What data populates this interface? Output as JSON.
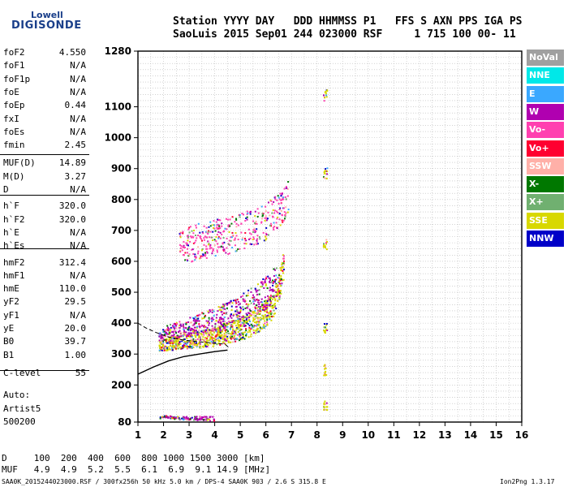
{
  "logo": {
    "line1": "Lowell",
    "line2": "DIGISONDE"
  },
  "header": {
    "line1": "Station YYYY DAY   DDD HHMMSS P1   FFS S AXN PPS IGA PS",
    "line2": "SaoLuis 2015 Sep01 244 023000 RSF     1 715 100 00- 11"
  },
  "params": [
    {
      "name": "foF2",
      "value": "4.550"
    },
    {
      "name": "foF1",
      "value": "N/A"
    },
    {
      "name": "foF1p",
      "value": "N/A"
    },
    {
      "name": "foE",
      "value": "N/A"
    },
    {
      "name": "foEp",
      "value": "0.44"
    },
    {
      "name": "fxI",
      "value": "N/A"
    },
    {
      "name": "foEs",
      "value": "N/A"
    },
    {
      "name": "fmin",
      "value": "2.45"
    },
    {
      "name": "MUF(D)",
      "value": "14.89"
    },
    {
      "name": "M(D)",
      "value": "3.27"
    },
    {
      "name": "D",
      "value": "N/A"
    },
    {
      "name": "h`F",
      "value": "320.0"
    },
    {
      "name": "h`F2",
      "value": "320.0"
    },
    {
      "name": "h`E",
      "value": "N/A"
    },
    {
      "name": "h`Es",
      "value": "N/A"
    },
    {
      "name": "hmF2",
      "value": "312.4"
    },
    {
      "name": "hmF1",
      "value": "N/A"
    },
    {
      "name": "hmE",
      "value": "110.0"
    },
    {
      "name": "yF2",
      "value": "29.5"
    },
    {
      "name": "yF1",
      "value": "N/A"
    },
    {
      "name": "yE",
      "value": "20.0"
    },
    {
      "name": "B0",
      "value": "39.7"
    },
    {
      "name": "B1",
      "value": "1.00"
    },
    {
      "name": "C-level",
      "value": "55"
    }
  ],
  "auto": {
    "label": "Auto:",
    "program": "Artist5",
    "version": "500200"
  },
  "table": {
    "row1": "D     100  200  400  600  800 1000 1500 3000 [km]",
    "row2": "MUF   4.9  4.9  5.2  5.5  6.1  6.9  9.1 14.9 [MHz]"
  },
  "footer": {
    "left": "SAA0K_2015244023000.RSF / 300fx256h 50 kHz 5.0 km / DPS-4 SAA0K 903 / 2.6 S 315.8 E",
    "right": "Ion2Png 1.3.17"
  },
  "legend": [
    {
      "label": "NoVal",
      "color": "#a0a0a0"
    },
    {
      "label": "NNE",
      "color": "#00e8e8"
    },
    {
      "label": "E",
      "color": "#3aa8ff"
    },
    {
      "label": "W",
      "color": "#b000b0"
    },
    {
      "label": "Vo-",
      "color": "#ff40b0"
    },
    {
      "label": "Vo+",
      "color": "#ff0030"
    },
    {
      "label": "SSW",
      "color": "#ffb0a8"
    },
    {
      "label": "X-",
      "color": "#007800"
    },
    {
      "label": "X+",
      "color": "#70b070"
    },
    {
      "label": "SSE",
      "color": "#d8d800"
    },
    {
      "label": "NNW",
      "color": "#0000c8"
    }
  ],
  "chart_data": {
    "type": "scatter",
    "title": "",
    "xlabel": "",
    "ylabel": "",
    "xlim": [
      1,
      16
    ],
    "ylim": [
      80,
      1280
    ],
    "x_ticks": [
      1,
      2,
      3,
      4,
      5,
      6,
      7,
      8,
      9,
      10,
      11,
      12,
      13,
      14,
      15,
      16
    ],
    "y_ticks": [
      80,
      200,
      300,
      400,
      500,
      600,
      700,
      800,
      900,
      1000,
      1100,
      1280
    ],
    "grid": true,
    "legend_position": "right",
    "series": [
      {
        "name": "O-trace F2 (lower, dense)",
        "color_key": "SSE",
        "points": [
          [
            1.8,
            330
          ],
          [
            2.2,
            335
          ],
          [
            2.6,
            340
          ],
          [
            3.0,
            345
          ],
          [
            3.4,
            350
          ],
          [
            3.8,
            355
          ],
          [
            4.2,
            365
          ],
          [
            4.6,
            375
          ],
          [
            5.0,
            385
          ],
          [
            5.4,
            400
          ],
          [
            5.8,
            420
          ],
          [
            6.2,
            450
          ],
          [
            6.5,
            520
          ],
          [
            6.7,
            600
          ]
        ]
      },
      {
        "name": "X-trace F2 (mid)",
        "color_key": "W",
        "points": [
          [
            1.8,
            360
          ],
          [
            2.4,
            380
          ],
          [
            3.0,
            390
          ],
          [
            3.6,
            405
          ],
          [
            4.2,
            420
          ],
          [
            4.8,
            440
          ],
          [
            5.4,
            470
          ],
          [
            6.0,
            500
          ],
          [
            6.4,
            540
          ]
        ]
      },
      {
        "name": "Multi-hop echoes",
        "color_key": "Vo-",
        "points": [
          [
            2.6,
            640
          ],
          [
            3.0,
            660
          ],
          [
            3.6,
            670
          ],
          [
            4.2,
            680
          ],
          [
            4.8,
            690
          ],
          [
            5.4,
            710
          ],
          [
            6.0,
            730
          ],
          [
            6.6,
            780
          ],
          [
            6.9,
            820
          ]
        ]
      },
      {
        "name": "Interference ~8.3 MHz",
        "color_key": "SSE",
        "points": [
          [
            8.3,
            130
          ],
          [
            8.3,
            250
          ],
          [
            8.3,
            390
          ],
          [
            8.3,
            660
          ],
          [
            8.3,
            890
          ],
          [
            8.3,
            1140
          ]
        ]
      },
      {
        "name": "Low-frequency E echoes",
        "color_key": "W",
        "points": [
          [
            1.8,
            95
          ],
          [
            2.0,
            100
          ],
          [
            2.4,
            96
          ],
          [
            2.8,
            94
          ],
          [
            3.2,
            95
          ],
          [
            3.6,
            93
          ],
          [
            4.0,
            92
          ]
        ]
      }
    ],
    "model_profile": {
      "name": "Electron density profile",
      "points": [
        [
          1.0,
          235
        ],
        [
          1.6,
          258
        ],
        [
          2.2,
          278
        ],
        [
          2.8,
          292
        ],
        [
          3.4,
          300
        ],
        [
          4.0,
          308
        ],
        [
          4.5,
          313
        ]
      ]
    },
    "model_profile_upper": {
      "points": [
        [
          1.0,
          400
        ],
        [
          1.3,
          385
        ],
        [
          1.7,
          370
        ],
        [
          2.2,
          355
        ],
        [
          2.8,
          345
        ],
        [
          3.6,
          338
        ],
        [
          4.4,
          332
        ],
        [
          4.6,
          318
        ]
      ]
    }
  }
}
